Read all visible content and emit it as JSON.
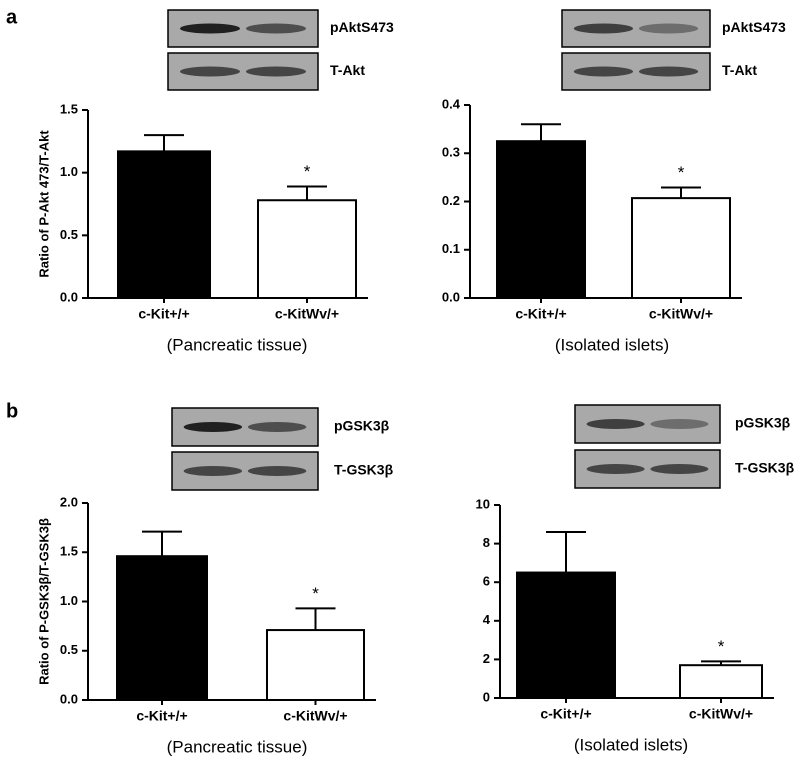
{
  "panel_labels": [
    "a",
    "b"
  ],
  "chart_data": [
    {
      "type": "bar",
      "blots": [
        "pAktS473",
        "T-Akt"
      ],
      "ylabel": "Ratio of P-Akt 473/T-Akt",
      "xlabel": "(Pancreatic tissue)",
      "categories": [
        "c-Kit+/+",
        "c-KitWv/+"
      ],
      "values": [
        1.17,
        0.78
      ],
      "errors": [
        0.13,
        0.11
      ],
      "colors": [
        "#000000",
        "#ffffff"
      ],
      "annotation": "*",
      "ylim": [
        0,
        1.5
      ],
      "yticks": [
        {
          "value": 0,
          "label": "0.0"
        },
        {
          "value": 0.5,
          "label": "0.5"
        },
        {
          "value": 1,
          "label": "1.0"
        },
        {
          "value": 1.5,
          "label": "1.5"
        }
      ]
    },
    {
      "type": "bar",
      "blots": [
        "pAktS473",
        "T-Akt"
      ],
      "xlabel": "(Isolated islets)",
      "categories": [
        "c-Kit+/+",
        "c-KitWv/+"
      ],
      "values": [
        0.325,
        0.207
      ],
      "errors": [
        0.035,
        0.022
      ],
      "colors": [
        "#000000",
        "#ffffff"
      ],
      "annotation": "*",
      "ylim": [
        0,
        0.4
      ],
      "yticks": [
        {
          "value": 0,
          "label": "0.0"
        },
        0.1,
        0.2,
        0.3,
        0.4
      ]
    },
    {
      "type": "bar",
      "blots": [
        "pGSK3β",
        "T-GSK3β"
      ],
      "ylabel": "Ratio of P-GSK3β/T-GSK3β",
      "xlabel": "(Pancreatic tissue)",
      "categories": [
        "c-Kit+/+",
        "c-KitWv/+"
      ],
      "values": [
        1.46,
        0.71
      ],
      "errors": [
        0.25,
        0.22
      ],
      "colors": [
        "#000000",
        "#ffffff"
      ],
      "annotation": "*",
      "ylim": [
        0,
        2
      ],
      "yticks": [
        {
          "value": 0,
          "label": "0.0"
        },
        0.5,
        {
          "value": 1,
          "label": "1.0"
        },
        1.5,
        {
          "value": 2,
          "label": "2.0"
        }
      ]
    },
    {
      "type": "bar",
      "blots": [
        "pGSK3β",
        "T-GSK3β"
      ],
      "xlabel": "(Isolated islets)",
      "categories": [
        "c-Kit+/+",
        "c-KitWv/+"
      ],
      "values": [
        6.5,
        1.7
      ],
      "errors": [
        2.1,
        0.2
      ],
      "colors": [
        "#000000",
        "#ffffff"
      ],
      "annotation": "*",
      "ylim": [
        0,
        10
      ],
      "yticks": [
        0,
        2,
        4,
        6,
        8,
        10
      ]
    }
  ]
}
